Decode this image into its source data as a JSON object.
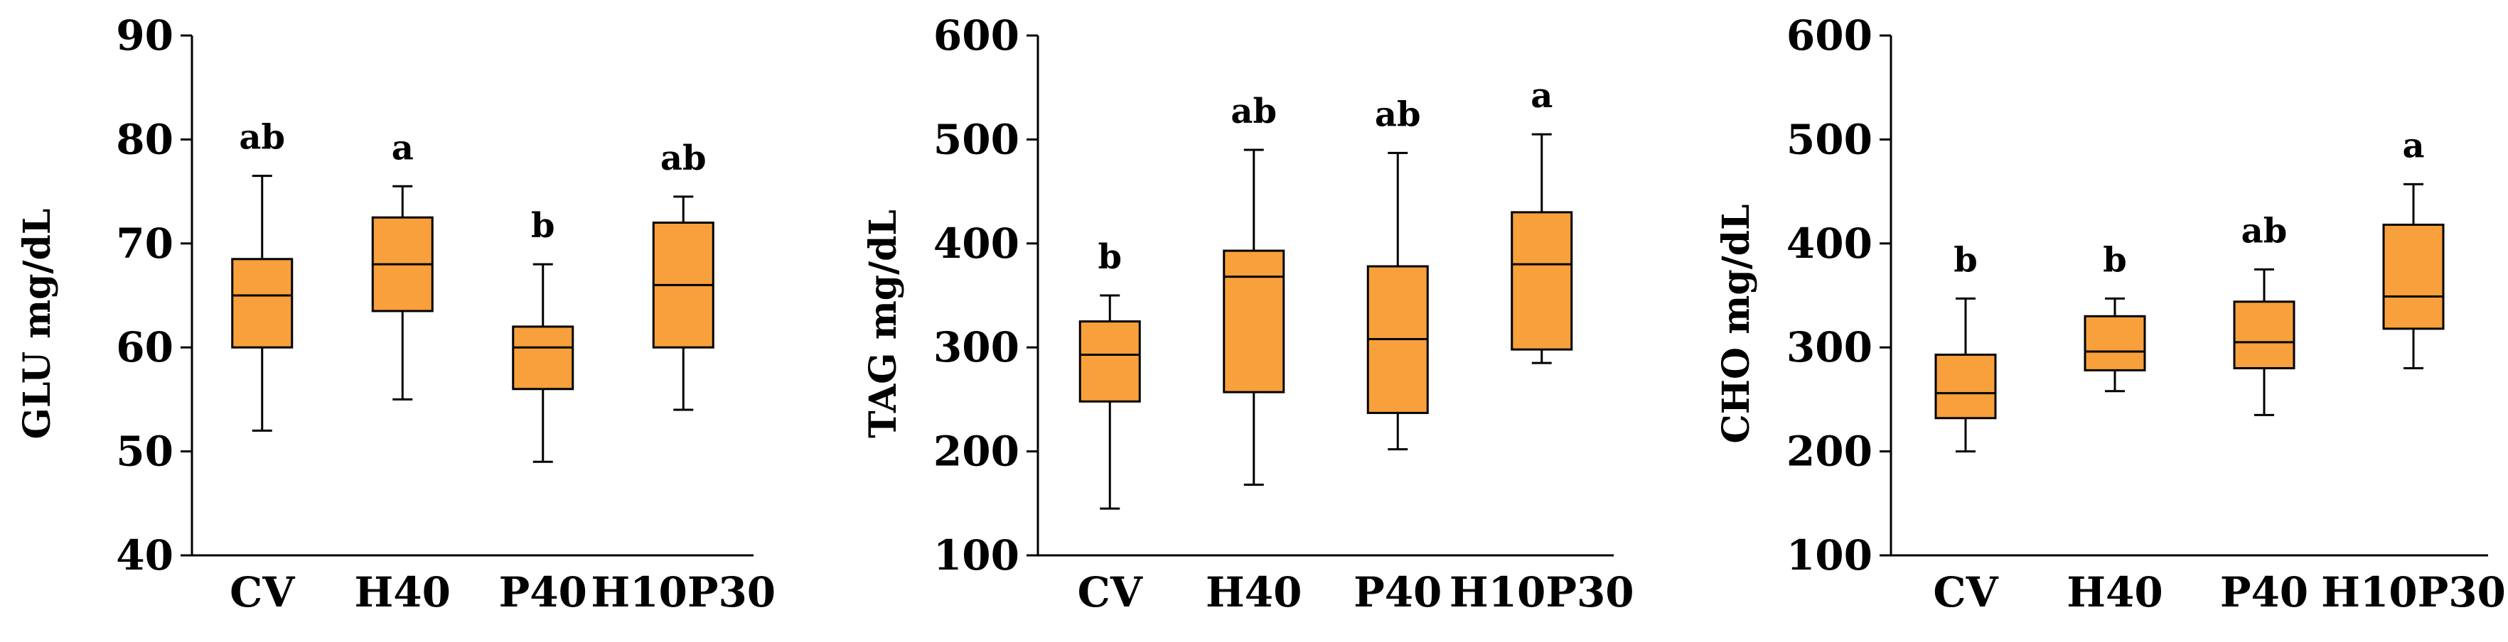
{
  "chart_data": [
    {
      "type": "box",
      "ylabel": "GLU mg/dL",
      "ylim": [
        40,
        90
      ],
      "yticks": [
        "40",
        "50",
        "60",
        "70",
        "80",
        "90"
      ],
      "categories": [
        "CV",
        "H40",
        "P40",
        "H10P30"
      ],
      "box_color": "#F7A03C",
      "boxes": [
        {
          "category": "CV",
          "min": 52,
          "q1": 60,
          "median": 65,
          "q3": 68.5,
          "max": 76.5,
          "label": "ab"
        },
        {
          "category": "H40",
          "min": 55,
          "q1": 63.5,
          "median": 68,
          "q3": 72.5,
          "max": 75.5,
          "label": "a"
        },
        {
          "category": "P40",
          "min": 49,
          "q1": 56,
          "median": 60,
          "q3": 62,
          "max": 68,
          "label": "b"
        },
        {
          "category": "H10P30",
          "min": 54,
          "q1": 60,
          "median": 66,
          "q3": 72,
          "max": 74.5,
          "label": "ab"
        }
      ]
    },
    {
      "type": "box",
      "ylabel": "TAG mg/dL",
      "ylim": [
        100,
        600
      ],
      "yticks": [
        "100",
        "200",
        "300",
        "400",
        "500",
        "600"
      ],
      "categories": [
        "CV",
        "H40",
        "P40",
        "H10P30"
      ],
      "box_color": "#F7A03C",
      "boxes": [
        {
          "category": "CV",
          "min": 145,
          "q1": 248,
          "median": 293,
          "q3": 325,
          "max": 350,
          "label": "b"
        },
        {
          "category": "H40",
          "min": 168,
          "q1": 257,
          "median": 368,
          "q3": 393,
          "max": 490,
          "label": "ab"
        },
        {
          "category": "P40",
          "min": 202,
          "q1": 237,
          "median": 308,
          "q3": 378,
          "max": 487,
          "label": "ab"
        },
        {
          "category": "H10P30",
          "min": 285,
          "q1": 298,
          "median": 380,
          "q3": 430,
          "max": 505,
          "label": "a"
        }
      ]
    },
    {
      "type": "box",
      "ylabel": "CHO mg/dL",
      "ylim": [
        100,
        600
      ],
      "yticks": [
        "100",
        "200",
        "300",
        "400",
        "500",
        "600"
      ],
      "categories": [
        "CV",
        "H40",
        "P40",
        "H10P30"
      ],
      "box_color": "#F7A03C",
      "boxes": [
        {
          "category": "CV",
          "min": 200,
          "q1": 232,
          "median": 256,
          "q3": 293,
          "max": 347,
          "label": "b"
        },
        {
          "category": "H40",
          "min": 258,
          "q1": 278,
          "median": 296,
          "q3": 330,
          "max": 347,
          "label": "b"
        },
        {
          "category": "P40",
          "min": 235,
          "q1": 280,
          "median": 305,
          "q3": 344,
          "max": 375,
          "label": "ab"
        },
        {
          "category": "H10P30",
          "min": 280,
          "q1": 318,
          "median": 349,
          "q3": 418,
          "max": 457,
          "label": "a"
        }
      ]
    }
  ]
}
